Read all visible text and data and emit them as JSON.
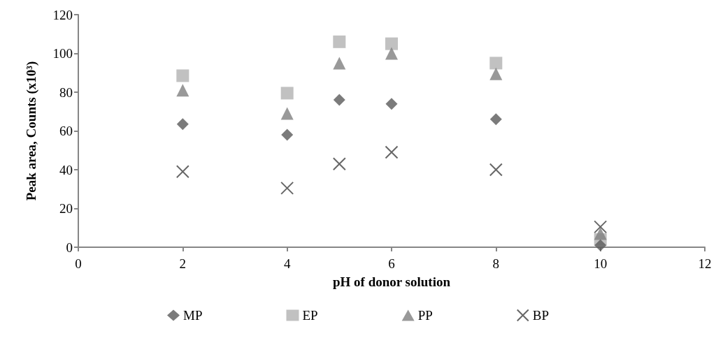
{
  "chart_data": {
    "type": "scatter",
    "xlabel": "pH of donor solution",
    "ylabel": "Peak area, Counts (x10³)",
    "x": [
      2,
      4,
      5,
      6,
      8,
      10
    ],
    "series": [
      {
        "name": "MP",
        "color": "#5a5a5a",
        "marker": "diamond",
        "values": [
          63.5,
          58,
          76,
          74,
          66,
          1
        ]
      },
      {
        "name": "EP",
        "color": "#b2b2b2",
        "marker": "square",
        "values": [
          88.5,
          79.5,
          106,
          105,
          95,
          4
        ]
      },
      {
        "name": "PP",
        "color": "#808080",
        "marker": "triangle",
        "values": [
          81,
          69,
          95,
          100,
          89.5,
          7
        ]
      },
      {
        "name": "BP",
        "color": "#404040",
        "marker": "cross",
        "values": [
          39,
          30.5,
          43,
          49,
          40,
          10.5
        ]
      }
    ],
    "xlim": [
      0,
      12
    ],
    "xticks": [
      0,
      2,
      4,
      6,
      8,
      10,
      12
    ],
    "ylim": [
      0,
      120
    ],
    "yticks": [
      0,
      20,
      40,
      60,
      80,
      100,
      120
    ],
    "grid": false,
    "legend": "bottom"
  }
}
